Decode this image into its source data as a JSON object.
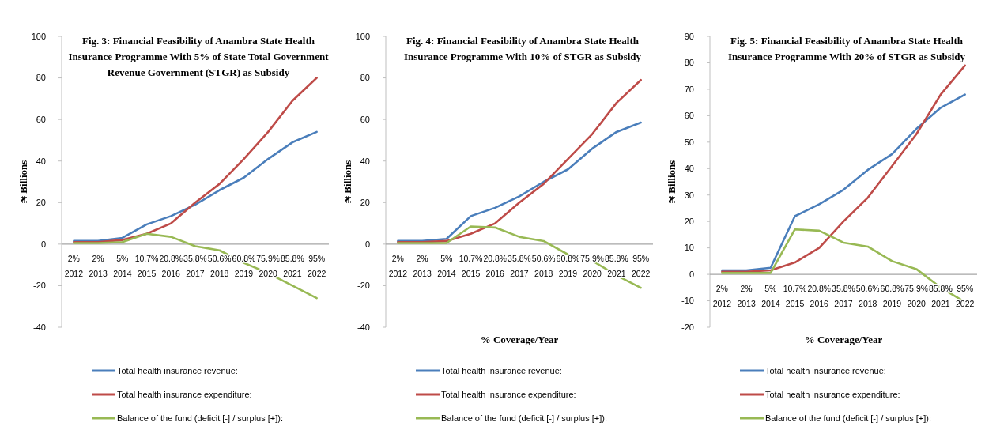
{
  "chart_data": [
    {
      "type": "line",
      "title": "Fig. 3:  Financial Feasibility of  Anambra State Health Insurance Programme With 5% of  State Total Government Revenue Government (STGR) as Subsidy",
      "ylabel": "₦ Billions",
      "categories": [
        "2%\n2012",
        "2%\n2013",
        "5%\n2014",
        "10.7%\n2015",
        "20.8%\n2016",
        "35.8%\n2017",
        "50.6%\n2018",
        "60.8%\n2019",
        "75.9%\n2020",
        "85.8%\n2021",
        "95%\n2022"
      ],
      "ylim": [
        -40,
        100
      ],
      "yticks": [
        -40,
        -20,
        0,
        20,
        40,
        60,
        80,
        100
      ],
      "grid": false,
      "legend": "bottom",
      "marker": "none",
      "series": [
        {
          "name": "Total health insurance revenue:",
          "color": "#4a7ebb",
          "values": [
            1.5,
            1.5,
            3,
            9.5,
            13.5,
            19,
            26,
            32,
            41,
            49,
            54
          ]
        },
        {
          "name": "Total health insurance expenditure:",
          "color": "#be4b48",
          "values": [
            1,
            1,
            2,
            5,
            10,
            20,
            29,
            41,
            54,
            69,
            80
          ]
        },
        {
          "name": "Balance of the fund (deficit [-] / surplus [+]):",
          "color": "#98b954",
          "values": [
            0.5,
            0.5,
            1,
            5,
            3.5,
            -1,
            -3,
            -9,
            -14,
            -20,
            -26
          ]
        }
      ]
    },
    {
      "type": "line",
      "title": "Fig. 4:  Financial Feasibility of  Anambra State Health Insurance Programme With 10% of  STGR as Subsidy",
      "ylabel": "₦ Billions",
      "xlabel": "% Coverage/Year",
      "categories": [
        "2%\n2012",
        "2%\n2013",
        "5%\n2014",
        "10.7%\n2015",
        "20.8%\n2016",
        "35.8%\n2017",
        "50.6%\n2018",
        "60.8%\n2019",
        "75.9%\n2020",
        "85.8%\n2021",
        "95%\n2022"
      ],
      "ylim": [
        -40,
        100
      ],
      "yticks": [
        -40,
        -20,
        0,
        20,
        40,
        60,
        80,
        100
      ],
      "grid": false,
      "legend": "bottom",
      "marker": "none",
      "series": [
        {
          "name": "Total health insurance revenue:",
          "color": "#4a7ebb",
          "values": [
            1.5,
            1.5,
            2.5,
            13.5,
            17.5,
            23,
            30,
            36,
            46,
            54,
            58.5
          ]
        },
        {
          "name": "Total health insurance expenditure:",
          "color": "#be4b48",
          "values": [
            1,
            1,
            1.5,
            5,
            10,
            20,
            29,
            41,
            53,
            68,
            79
          ]
        },
        {
          "name": "Balance of the fund (deficit [-] / surplus [+]):",
          "color": "#98b954",
          "values": [
            0.5,
            0.5,
            0.5,
            8.5,
            8,
            3.5,
            1.5,
            -5,
            -8,
            -15,
            -21
          ]
        }
      ]
    },
    {
      "type": "line",
      "title": "Fig. 5:  Financial Feasibility of  Anambra State Health Insurance Programme With 20% of  STGR as Subsidy",
      "ylabel": "₦ Billions",
      "xlabel": "% Coverage/Year",
      "categories": [
        "2%\n2012",
        "2%\n2013",
        "5%\n2014",
        "10.7%\n2015",
        "20.8%\n2016",
        "35.8%\n2017",
        "50.6%\n2018",
        "60.8%\n2019",
        "75.9%\n2020",
        "85.8%\n2021",
        "95%\n2022"
      ],
      "ylim": [
        -20,
        90
      ],
      "yticks": [
        -20,
        -10,
        0,
        10,
        20,
        30,
        40,
        50,
        60,
        70,
        80,
        90
      ],
      "grid": false,
      "legend": "bottom",
      "marker": "none",
      "series": [
        {
          "name": "Total health insurance revenue:",
          "color": "#4a7ebb",
          "values": [
            1.5,
            1.5,
            2.5,
            22,
            26.5,
            32,
            39.5,
            45.5,
            55,
            63,
            68
          ]
        },
        {
          "name": "Total health insurance expenditure:",
          "color": "#be4b48",
          "values": [
            1,
            1,
            1.5,
            4.5,
            10,
            20,
            29,
            41,
            53,
            68,
            79
          ]
        },
        {
          "name": "Balance of the fund (deficit [-] / surplus [+]):",
          "color": "#98b954",
          "values": [
            0.5,
            0.5,
            0.5,
            17,
            16.5,
            12,
            10.5,
            5,
            2,
            -5,
            -10.5
          ]
        }
      ]
    }
  ]
}
